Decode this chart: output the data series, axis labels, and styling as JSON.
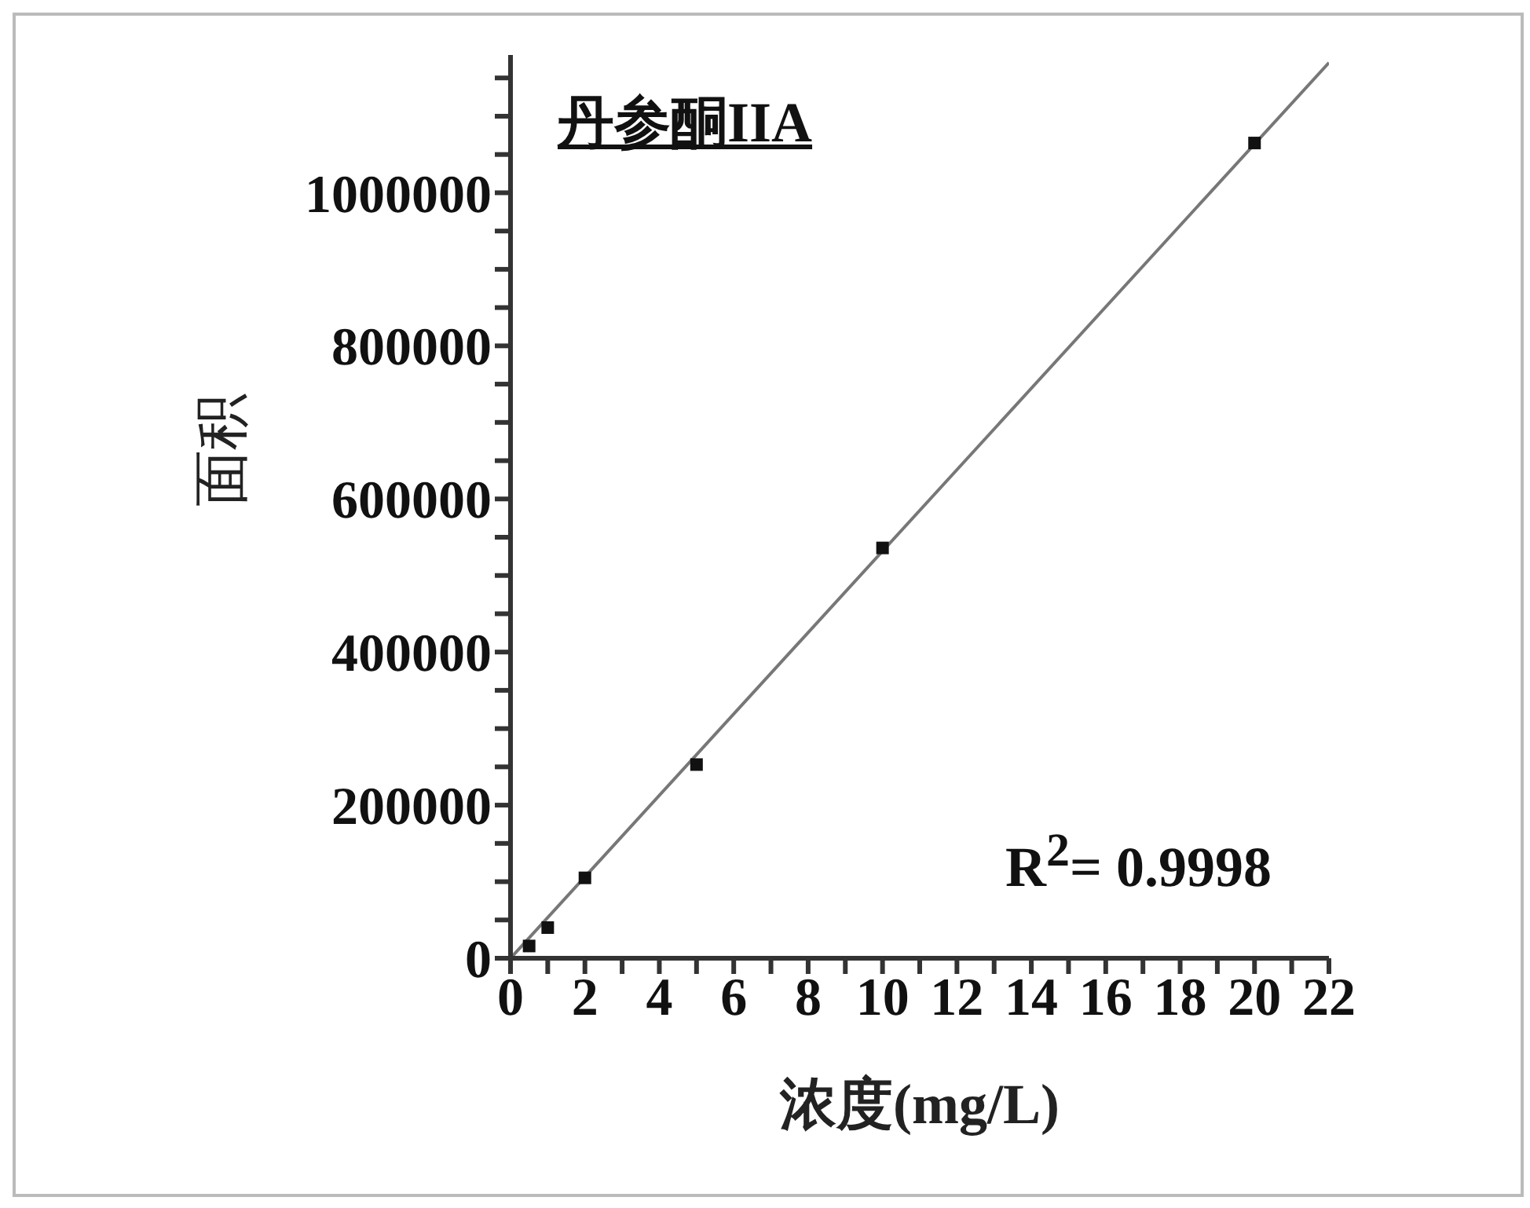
{
  "chart_data": {
    "type": "scatter",
    "title": "丹参酮IIA",
    "xlabel": "浓度(mg/L)",
    "ylabel": "面积",
    "annotations": [
      "R$^{2}$= 0.9998"
    ],
    "series": [
      {
        "color": "#111111",
        "marker": "square",
        "x": [
          0.5,
          1,
          2,
          5,
          10,
          20
        ],
        "values": [
          16000,
          40000,
          105000,
          253000,
          536000,
          1065000
        ]
      },
      {
        "type": "line",
        "color": "#777777",
        "marker": "none",
        "x": [
          0,
          22
        ],
        "values": [
          0,
          1170000
        ]
      }
    ],
    "xlim": [
      0,
      22
    ],
    "xticks": [
      0,
      {
        "value": 1,
        "label": null
      },
      2,
      {
        "value": 3,
        "label": null
      },
      4,
      {
        "value": 5,
        "label": null
      },
      6,
      {
        "value": 7,
        "label": null
      },
      8,
      {
        "value": 9,
        "label": null
      },
      10,
      {
        "value": 11,
        "label": null
      },
      12,
      {
        "value": 13,
        "label": null
      },
      14,
      {
        "value": 15,
        "label": null
      },
      16,
      {
        "value": 17,
        "label": null
      },
      18,
      {
        "value": 19,
        "label": null
      },
      20,
      {
        "value": 21,
        "label": null
      },
      22
    ],
    "ylim": [
      0,
      1180000
    ],
    "yticks": [
      0,
      {
        "value": 50000,
        "label": null
      },
      {
        "value": 100000,
        "label": null
      },
      {
        "value": 150000,
        "label": null
      },
      200000,
      {
        "value": 250000,
        "label": null
      },
      {
        "value": 300000,
        "label": null
      },
      {
        "value": 350000,
        "label": null
      },
      400000,
      {
        "value": 450000,
        "label": null
      },
      {
        "value": 500000,
        "label": null
      },
      {
        "value": 550000,
        "label": null
      },
      600000,
      {
        "value": 650000,
        "label": null
      },
      {
        "value": 700000,
        "label": null
      },
      {
        "value": 750000,
        "label": null
      },
      800000,
      {
        "value": 850000,
        "label": null
      },
      {
        "value": 900000,
        "label": null
      },
      {
        "value": 950000,
        "label": null
      },
      1000000,
      {
        "value": 1050000,
        "label": null
      },
      {
        "value": 1100000,
        "label": null
      },
      {
        "value": 1150000,
        "label": null
      }
    ],
    "grid": false
  }
}
